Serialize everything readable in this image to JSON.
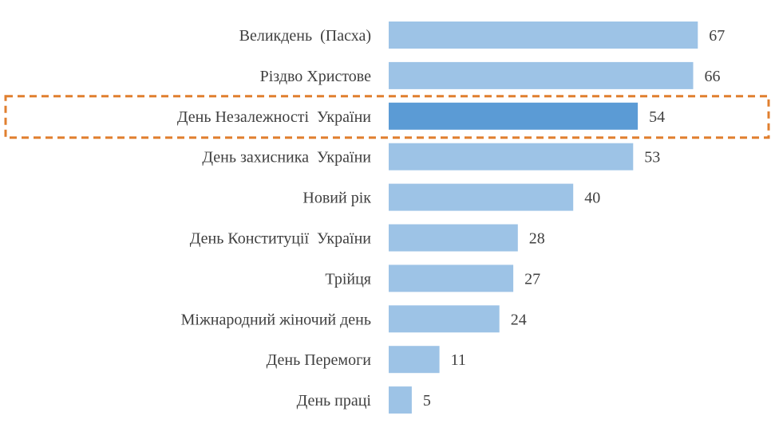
{
  "chart_data": {
    "type": "bar",
    "orientation": "horizontal",
    "categories": [
      "Великдень  (Пасха)",
      "Різдво Христове",
      "День Незалежності  України",
      "День захисника  України",
      "Новий рік",
      "День Конституції  України",
      "Трійця",
      "Міжнародний жіночий день",
      "День Перемоги",
      "День праці"
    ],
    "values": [
      67,
      66,
      54,
      53,
      40,
      28,
      27,
      24,
      11,
      5
    ],
    "highlight_index": 2,
    "xlim": [
      0,
      70
    ],
    "grid": false,
    "legend": "none",
    "title": "",
    "xlabel": "",
    "ylabel": ""
  },
  "colors": {
    "bar": "#9dc3e6",
    "highlight_bar": "#5b9bd5",
    "highlight_box": "#e07f2f",
    "label_text": "#404040"
  }
}
